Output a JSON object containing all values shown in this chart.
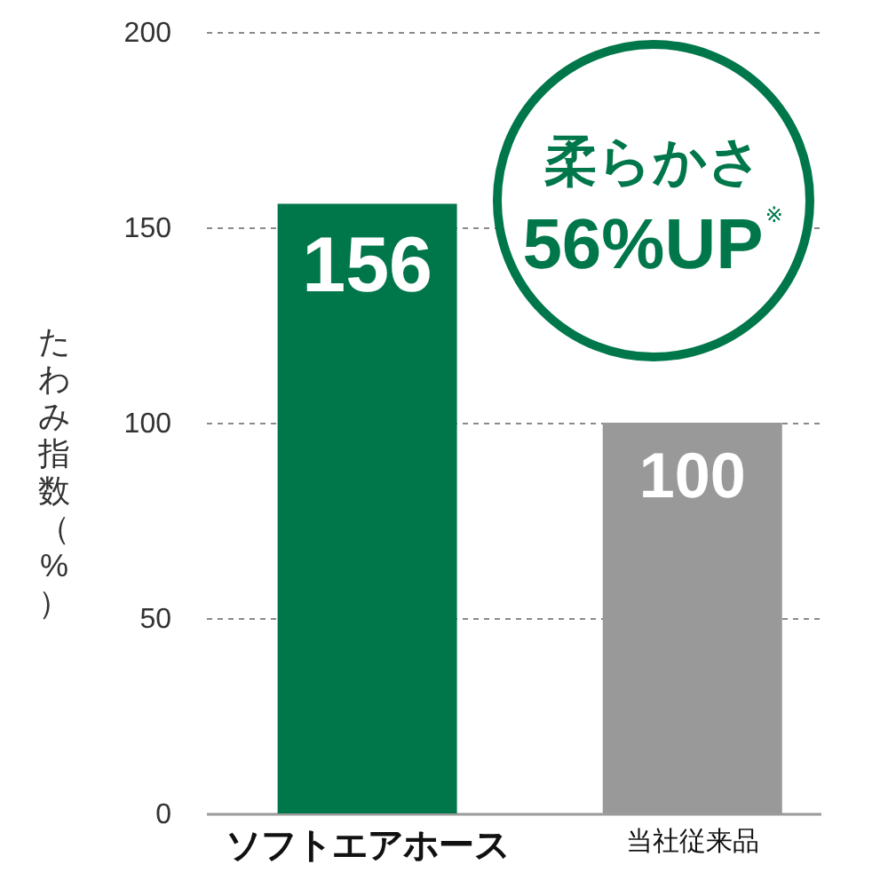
{
  "chart_data": {
    "type": "bar",
    "categories": [
      "ソフトエアホース",
      "当社従来品"
    ],
    "values": [
      156,
      100
    ],
    "colors": [
      "#00774a",
      "#999999"
    ],
    "ylabel": "たわみ指数（%）",
    "ylim": [
      0,
      200
    ],
    "yticks": [
      0,
      50,
      100,
      150,
      200
    ],
    "grid": "y",
    "data_labels": true,
    "annotations": [
      "柔らかさ",
      "56%UP$^{※}$"
    ]
  }
}
